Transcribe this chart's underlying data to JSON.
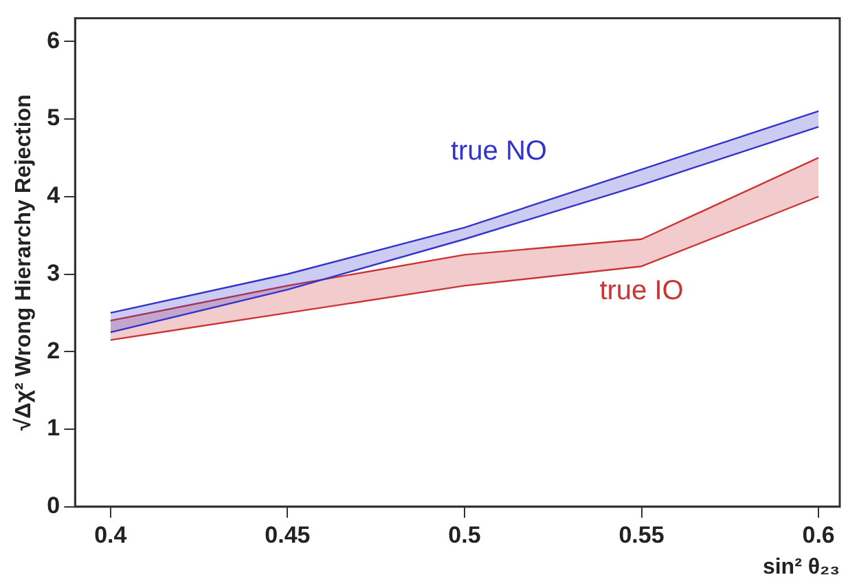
{
  "chart_data": {
    "type": "line",
    "xlabel": "sin² θ₂₃",
    "ylabel": "√Δχ² Wrong Hierarchy Rejection",
    "xlim": [
      0.39,
      0.606
    ],
    "xticks": [
      0.4,
      0.45,
      0.5,
      0.55,
      0.6
    ],
    "ylim": [
      0,
      6.3
    ],
    "yticks": [
      0,
      1,
      2,
      3,
      4,
      5,
      6
    ],
    "grid": false,
    "legend": false,
    "x": [
      0.4,
      0.45,
      0.5,
      0.55,
      0.6
    ],
    "series": [
      {
        "color": "#3333cc",
        "values": [
          2.25,
          2.8,
          3.45,
          4.15,
          4.9
        ]
      },
      {
        "name": "true NO",
        "type": "area",
        "color": "#3333cc",
        "values": [
          2.5,
          3.0,
          3.6,
          4.35,
          5.1
        ]
      },
      {
        "color": "#cc3333",
        "values": [
          2.15,
          2.5,
          2.85,
          3.1,
          4.0
        ]
      },
      {
        "name": "true IO",
        "type": "area",
        "color": "#cc3333",
        "values": [
          2.4,
          2.85,
          3.25,
          3.45,
          4.5
        ]
      }
    ]
  }
}
